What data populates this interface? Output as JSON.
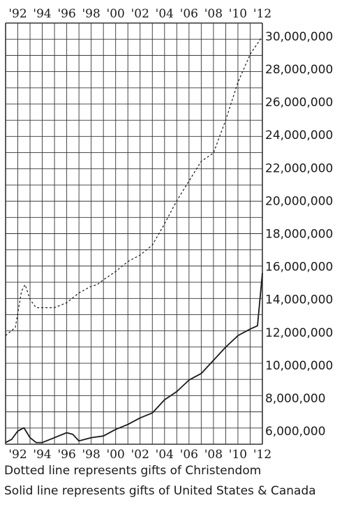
{
  "chart_data": {
    "type": "line",
    "x_ticks": [
      "'92",
      "'94",
      "'96",
      "'98",
      "'00",
      "'02",
      "'04",
      "'06",
      "'08",
      "'10",
      "'12"
    ],
    "y_ticks": [
      "6,000,000",
      "8,000,000",
      "10,000,000",
      "12,000,000",
      "14,000,000",
      "16,000,000",
      "18,000,000",
      "20,000,000",
      "22,000,000",
      "24,000,000",
      "26,000,000",
      "28,000,000",
      "30,000,000"
    ],
    "xlim": [
      1891,
      1912
    ],
    "ylim": [
      5200000,
      30800000
    ],
    "grid": true,
    "series": [
      {
        "style": "dotted",
        "x": [
          1891,
          1891.8,
          1892.3,
          1892.6,
          1893,
          1893.5,
          1894,
          1895,
          1896,
          1897,
          1898,
          1898.5,
          1899,
          1900,
          1901,
          1902,
          1903,
          1904,
          1905,
          1906,
          1907,
          1908,
          1909,
          1910,
          1911,
          1912
        ],
        "y": [
          11800000,
          12300000,
          14500000,
          14900000,
          14000000,
          13500000,
          13500000,
          13500000,
          13800000,
          14400000,
          14800000,
          14900000,
          15200000,
          15700000,
          16300000,
          16700000,
          17300000,
          18600000,
          20000000,
          21200000,
          22400000,
          22900000,
          24900000,
          27200000,
          28900000,
          30000000
        ]
      },
      {
        "style": "solid",
        "x": [
          1891,
          1891.5,
          1892,
          1892.5,
          1893,
          1893.5,
          1894,
          1895,
          1896,
          1896.5,
          1897,
          1898,
          1899,
          1900,
          1901,
          1902,
          1903,
          1904,
          1905,
          1906,
          1907,
          1908,
          1909,
          1910,
          1911,
          1911.6,
          1912
        ],
        "y": [
          5300000,
          5500000,
          6000000,
          6200000,
          5600000,
          5300000,
          5300000,
          5600000,
          5900000,
          5800000,
          5400000,
          5600000,
          5700000,
          6100000,
          6400000,
          6800000,
          7100000,
          7900000,
          8400000,
          9100000,
          9500000,
          10300000,
          11100000,
          11800000,
          12200000,
          12400000,
          15600000
        ]
      }
    ],
    "captions": [
      "Dotted line represents gifts of Christendom",
      "Solid line represents gifts of United States & Canada"
    ]
  }
}
